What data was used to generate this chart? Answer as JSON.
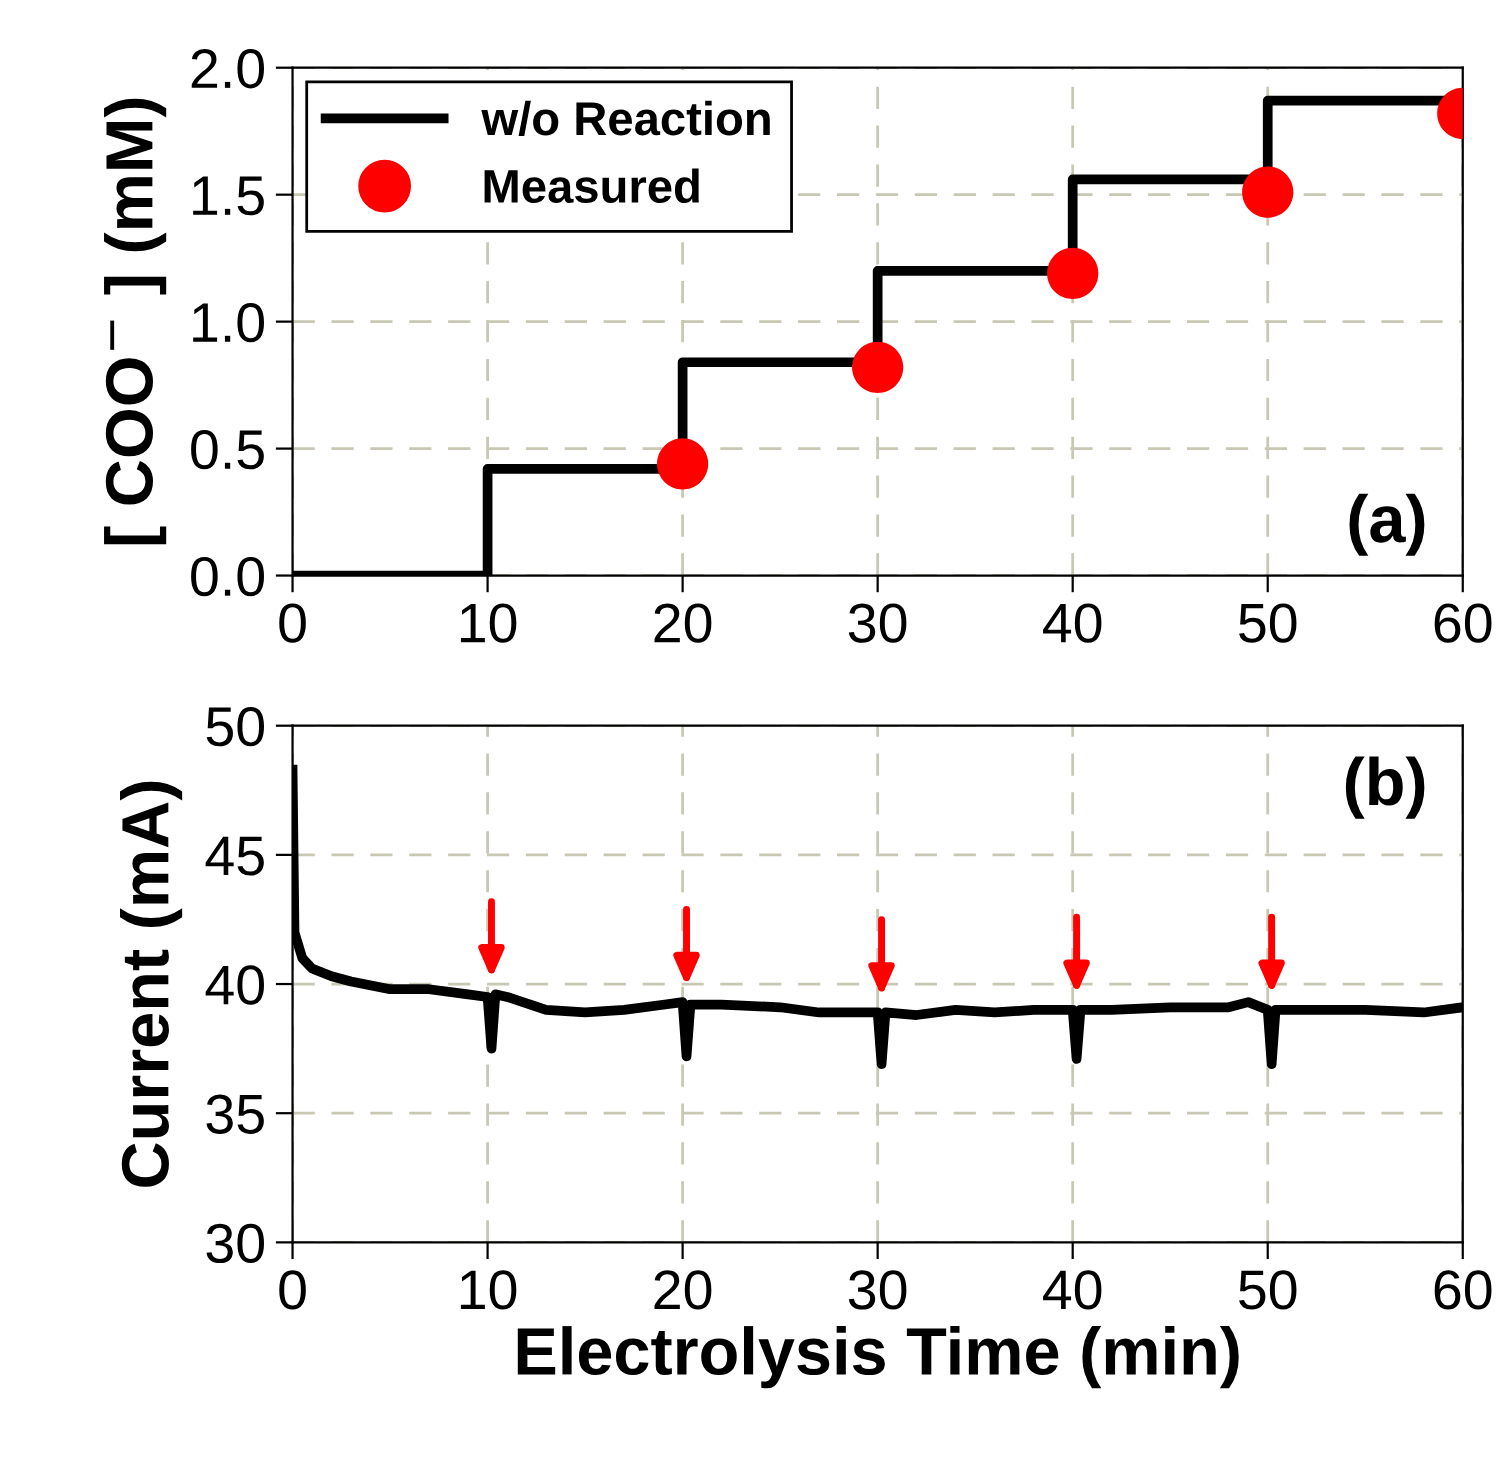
{
  "chart_data": [
    {
      "type": "step",
      "ylabel": "[ COO$^{−}$ ] (mM)",
      "xlim": [
        0,
        60
      ],
      "xticks": [
        0,
        10,
        20,
        30,
        40,
        50,
        60
      ],
      "ylim": [
        0,
        2
      ],
      "yticks": [
        {
          "value": 0,
          "label": "0.0"
        },
        {
          "value": 0.5,
          "label": "0.5"
        },
        {
          "value": 1,
          "label": "1.0"
        },
        {
          "value": 1.5,
          "label": "1.5"
        },
        {
          "value": 2,
          "label": "2.0"
        }
      ],
      "grid": true,
      "legend": "top left",
      "annotations": [
        "(a)"
      ],
      "series": [
        {
          "name": "w/o Reaction",
          "color": "#000000",
          "x": [
            0,
            10,
            20,
            30,
            40,
            50,
            60
          ],
          "values": [
            0,
            0.42,
            0.84,
            1.2,
            1.56,
            1.87,
            1.87
          ]
        },
        {
          "name": "Measured",
          "type": "scatter",
          "marker": "circle",
          "color": "#ff0000",
          "x": [
            20,
            30,
            40,
            50,
            60
          ],
          "values": [
            0.44,
            0.82,
            1.19,
            1.51,
            1.82
          ]
        }
      ]
    },
    {
      "type": "line",
      "xlabel": "Electrolysis Time (min)",
      "ylabel": "Current (mA)",
      "xlim": [
        0,
        60
      ],
      "xticks": [
        0,
        10,
        20,
        30,
        40,
        50,
        60
      ],
      "ylim": [
        30,
        50
      ],
      "yticks": [
        30,
        35,
        40,
        45,
        50
      ],
      "grid": true,
      "legend": false,
      "annotations": [
        "(b)"
      ],
      "series": [
        {
          "color": "#000000",
          "x": [
            0,
            0.1,
            0.5,
            1,
            2,
            3,
            5,
            7,
            9,
            10,
            10.2,
            10.4,
            11,
            13,
            15,
            17,
            19,
            20,
            20.2,
            20.4,
            22,
            25,
            27,
            30,
            30.2,
            30.4,
            32,
            34,
            36,
            38,
            40,
            40.2,
            40.4,
            42,
            45,
            48,
            49,
            50,
            50.2,
            50.4,
            52,
            55,
            58,
            59,
            60
          ],
          "values": [
            48.3,
            42,
            41,
            40.6,
            40.3,
            40.1,
            39.8,
            39.8,
            39.6,
            39.5,
            37.5,
            39.6,
            39.5,
            39.0,
            38.9,
            39.0,
            39.2,
            39.3,
            37.2,
            39.2,
            39.2,
            39.1,
            38.9,
            38.9,
            36.9,
            38.9,
            38.8,
            39.0,
            38.9,
            39.0,
            39.0,
            37.1,
            39.0,
            39.0,
            39.1,
            39.1,
            39.3,
            39.0,
            36.9,
            39.0,
            39.0,
            39.0,
            38.9,
            39.0,
            39.1
          ]
        }
      ]
    }
  ]
}
